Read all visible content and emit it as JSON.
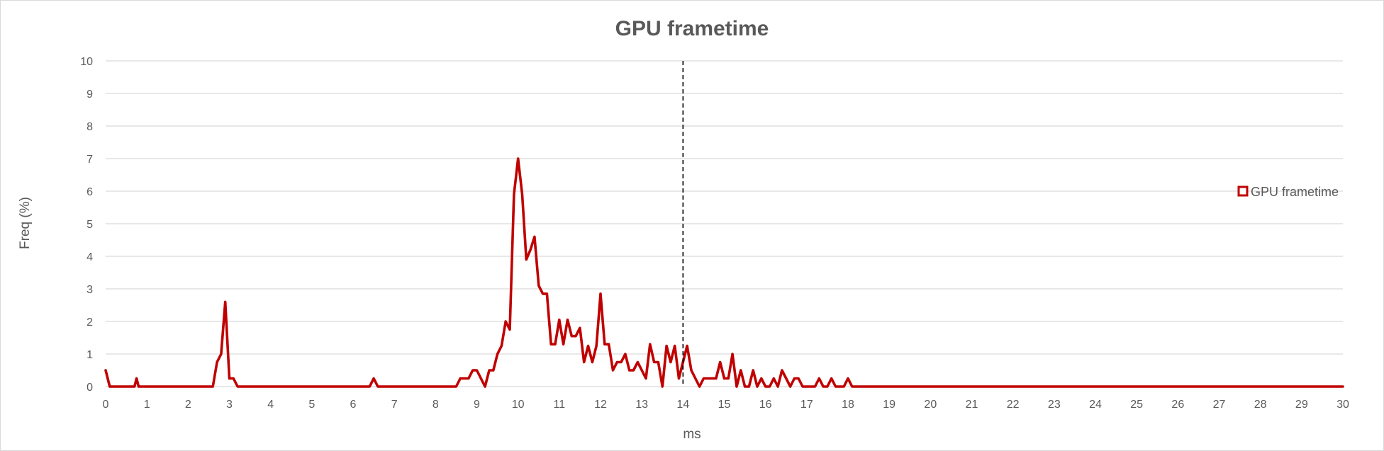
{
  "chart_data": {
    "type": "line",
    "title": "GPU frametime",
    "xlabel": "ms",
    "ylabel": "Freq (%)",
    "xlim": [
      0,
      30
    ],
    "ylim": [
      0,
      10
    ],
    "x_ticks": [
      0,
      1,
      2,
      3,
      4,
      5,
      6,
      7,
      8,
      9,
      10,
      11,
      12,
      13,
      14,
      15,
      16,
      17,
      18,
      19,
      20,
      21,
      22,
      23,
      24,
      25,
      26,
      27,
      28,
      29,
      30
    ],
    "y_ticks": [
      0,
      1,
      2,
      3,
      4,
      5,
      6,
      7,
      8,
      9,
      10
    ],
    "grid": true,
    "legend_position": "right",
    "series": [
      {
        "name": "GPU frametime",
        "color": "#c00000",
        "points": [
          [
            0,
            0.5
          ],
          [
            0.1,
            0
          ],
          [
            0.7,
            0
          ],
          [
            0.75,
            0.25
          ],
          [
            0.8,
            0
          ],
          [
            2.6,
            0
          ],
          [
            2.7,
            0.75
          ],
          [
            2.8,
            1
          ],
          [
            2.9,
            2.6
          ],
          [
            3.0,
            0.25
          ],
          [
            3.1,
            0.25
          ],
          [
            3.2,
            0
          ],
          [
            6.4,
            0
          ],
          [
            6.5,
            0.25
          ],
          [
            6.6,
            0
          ],
          [
            8.5,
            0
          ],
          [
            8.6,
            0.25
          ],
          [
            8.8,
            0.25
          ],
          [
            8.9,
            0.5
          ],
          [
            9.0,
            0.5
          ],
          [
            9.1,
            0.25
          ],
          [
            9.2,
            0
          ],
          [
            9.3,
            0.5
          ],
          [
            9.4,
            0.5
          ],
          [
            9.5,
            1
          ],
          [
            9.6,
            1.25
          ],
          [
            9.7,
            2
          ],
          [
            9.8,
            1.75
          ],
          [
            9.9,
            5.9
          ],
          [
            10.0,
            7
          ],
          [
            10.1,
            5.9
          ],
          [
            10.2,
            3.9
          ],
          [
            10.3,
            4.2
          ],
          [
            10.4,
            4.6
          ],
          [
            10.5,
            3.1
          ],
          [
            10.6,
            2.85
          ],
          [
            10.7,
            2.85
          ],
          [
            10.8,
            1.3
          ],
          [
            10.9,
            1.3
          ],
          [
            11.0,
            2.05
          ],
          [
            11.1,
            1.3
          ],
          [
            11.2,
            2.05
          ],
          [
            11.3,
            1.55
          ],
          [
            11.4,
            1.55
          ],
          [
            11.5,
            1.8
          ],
          [
            11.6,
            0.75
          ],
          [
            11.7,
            1.25
          ],
          [
            11.8,
            0.75
          ],
          [
            11.9,
            1.25
          ],
          [
            12.0,
            2.85
          ],
          [
            12.1,
            1.3
          ],
          [
            12.2,
            1.3
          ],
          [
            12.3,
            0.5
          ],
          [
            12.4,
            0.75
          ],
          [
            12.5,
            0.75
          ],
          [
            12.6,
            1
          ],
          [
            12.7,
            0.5
          ],
          [
            12.8,
            0.5
          ],
          [
            12.9,
            0.75
          ],
          [
            13.0,
            0.5
          ],
          [
            13.1,
            0.25
          ],
          [
            13.2,
            1.3
          ],
          [
            13.3,
            0.75
          ],
          [
            13.4,
            0.75
          ],
          [
            13.5,
            0
          ],
          [
            13.6,
            1.25
          ],
          [
            13.7,
            0.75
          ],
          [
            13.8,
            1.25
          ],
          [
            13.9,
            0.25
          ],
          [
            14.0,
            0.75
          ],
          [
            14.1,
            1.25
          ],
          [
            14.2,
            0.5
          ],
          [
            14.4,
            0
          ],
          [
            14.5,
            0.25
          ],
          [
            14.6,
            0.25
          ],
          [
            14.8,
            0.25
          ],
          [
            14.9,
            0.75
          ],
          [
            15.0,
            0.25
          ],
          [
            15.1,
            0.25
          ],
          [
            15.2,
            1
          ],
          [
            15.3,
            0
          ],
          [
            15.4,
            0.5
          ],
          [
            15.5,
            0
          ],
          [
            15.6,
            0
          ],
          [
            15.7,
            0.5
          ],
          [
            15.8,
            0
          ],
          [
            15.9,
            0.25
          ],
          [
            16.0,
            0
          ],
          [
            16.1,
            0
          ],
          [
            16.2,
            0.25
          ],
          [
            16.3,
            0
          ],
          [
            16.4,
            0.5
          ],
          [
            16.5,
            0.25
          ],
          [
            16.6,
            0
          ],
          [
            16.7,
            0.25
          ],
          [
            16.8,
            0.25
          ],
          [
            16.9,
            0
          ],
          [
            17.2,
            0
          ],
          [
            17.3,
            0.25
          ],
          [
            17.4,
            0
          ],
          [
            17.5,
            0
          ],
          [
            17.6,
            0.25
          ],
          [
            17.7,
            0
          ],
          [
            17.9,
            0
          ],
          [
            18.0,
            0.25
          ],
          [
            18.1,
            0
          ],
          [
            30,
            0
          ]
        ]
      }
    ],
    "reference_line": {
      "x": 14,
      "style": "dashed",
      "color": "#000000"
    }
  }
}
